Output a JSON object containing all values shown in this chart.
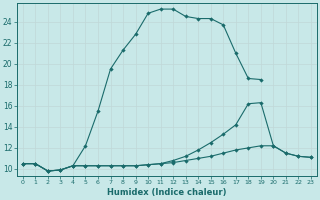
{
  "xlabel": "Humidex (Indice chaleur)",
  "bg_color": "#c8e8e8",
  "grid_color": "#d8eaea",
  "line_color": "#1a6b6b",
  "xlim": [
    -0.5,
    23.5
  ],
  "ylim": [
    9.3,
    25.8
  ],
  "xticks": [
    0,
    1,
    2,
    3,
    4,
    5,
    6,
    7,
    8,
    9,
    10,
    11,
    12,
    13,
    14,
    15,
    16,
    17,
    18,
    19,
    20,
    21,
    22,
    23
  ],
  "yticks": [
    10,
    12,
    14,
    16,
    18,
    20,
    22,
    24
  ],
  "curve1_x": [
    0,
    1,
    2,
    3,
    4,
    5,
    6,
    7,
    8,
    9,
    10,
    11,
    12,
    13,
    14,
    15,
    16,
    17,
    18,
    19
  ],
  "curve1_y": [
    10.5,
    10.5,
    9.8,
    9.9,
    10.3,
    12.2,
    15.5,
    19.5,
    21.3,
    22.8,
    24.8,
    25.2,
    25.2,
    24.5,
    24.3,
    24.3,
    23.7,
    21.0,
    18.6,
    18.5
  ],
  "curve2_x": [
    0,
    1,
    2,
    3,
    4,
    5,
    6,
    7,
    8,
    9,
    10,
    11,
    12,
    13,
    14,
    15,
    16,
    17,
    18,
    19,
    20,
    21,
    22,
    23
  ],
  "curve2_y": [
    10.5,
    10.5,
    9.8,
    9.9,
    10.3,
    10.3,
    10.3,
    10.3,
    10.3,
    10.3,
    10.4,
    10.5,
    10.8,
    11.2,
    11.8,
    12.5,
    13.3,
    14.2,
    16.2,
    16.3,
    12.2,
    11.5,
    11.2,
    11.1
  ],
  "curve3_x": [
    0,
    1,
    2,
    3,
    4,
    5,
    6,
    7,
    8,
    9,
    10,
    11,
    12,
    13,
    14,
    15,
    16,
    17,
    18,
    19,
    20,
    21,
    22,
    23
  ],
  "curve3_y": [
    10.5,
    10.5,
    9.8,
    9.9,
    10.3,
    10.3,
    10.3,
    10.3,
    10.3,
    10.3,
    10.4,
    10.5,
    10.6,
    10.8,
    11.0,
    11.2,
    11.5,
    11.8,
    12.0,
    12.2,
    12.2,
    11.5,
    11.2,
    11.1
  ]
}
